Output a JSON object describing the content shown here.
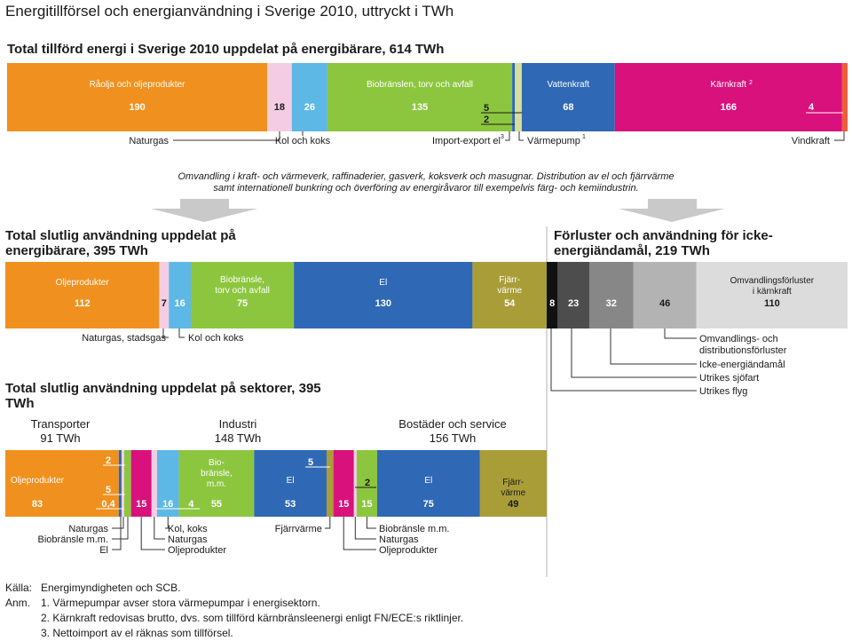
{
  "title": "Energitillförsel och energianvändning i Sverige 2010, uttryckt i TWh",
  "note_line1": "Omvandling i kraft- och värmeverk, raffinaderier, gasverk, koksverk och masugnar. Distribution av el och fjärrvärme",
  "note_line2": "samt internationell bunkring och överföring av energiråvaror till exempelvis färg- och kemiindustrin.",
  "colors": {
    "olja": "#f0901e",
    "gas": "#f4cde4",
    "kol": "#5db8e6",
    "bio": "#8cc63f",
    "el": "#2f68b5",
    "karn": "#d8117c",
    "vind": "#ef5d3a",
    "fjarr": "#a99d38",
    "varmepump": "#d7dd9a"
  },
  "chart_data": [
    {
      "type": "bar",
      "title": "Total tillförd energi i Sverige 2010 uppdelat på energibärare, 614 TWh",
      "segments": [
        {
          "name": "Råolja och oljeprodukter",
          "value": 190,
          "label": "190",
          "color": "olja"
        },
        {
          "name": "Naturgas",
          "value": 18,
          "label": "18",
          "color": "gas"
        },
        {
          "name": "Kol och koks",
          "value": 26,
          "label": "26",
          "color": "kol"
        },
        {
          "name": "Biobränslen, torv och avfall",
          "value": 135,
          "label": "135",
          "color": "bio"
        },
        {
          "name": "Import-export el",
          "value": 2,
          "label": "2",
          "color": "el"
        },
        {
          "name": "Värmepump",
          "value": 5,
          "label": "5",
          "color": "varmepump"
        },
        {
          "name": "Vattenkraft",
          "value": 68,
          "label": "68",
          "color": "el"
        },
        {
          "name": "Kärnkraft",
          "value": 166,
          "label": "166",
          "color": "karn"
        },
        {
          "name": "Vindkraft",
          "value": 4,
          "label": "4",
          "color": "vind"
        }
      ],
      "inner_labels": [
        "Råolja och oljeprodukter",
        "Biobränslen, torv och avfall",
        "Vattenkraft",
        "Kärnkraft"
      ],
      "callouts": [
        "Naturgas",
        "Kol och koks",
        "Import-export el",
        "Värmepump",
        "Vindkraft"
      ],
      "superscripts": [
        "3",
        "1",
        "2"
      ]
    },
    {
      "type": "bar",
      "title": "Total slutlig användning uppdelat på energibärare, 395 TWh",
      "segments": [
        {
          "name": "Oljeprodukter",
          "value": 112,
          "label": "112",
          "color": "olja"
        },
        {
          "name": "Naturgas, stadsgas",
          "value": 7,
          "label": "7",
          "color": "gas"
        },
        {
          "name": "Kol och koks",
          "value": 16,
          "label": "16",
          "color": "kol"
        },
        {
          "name": "Biobränsle, torv och avfall",
          "value": 75,
          "label": "75",
          "color": "bio"
        },
        {
          "name": "El",
          "value": 130,
          "label": "130",
          "color": "el"
        },
        {
          "name": "Fjärrvärme",
          "value": 54,
          "label": "54",
          "color": "fjarr"
        }
      ],
      "inner_labels": [
        "Oljeprodukter",
        "Biobränsle,",
        "torv och avfall",
        "El",
        "Fjärr-",
        "värme"
      ],
      "callouts": [
        "Naturgas, stadsgas",
        "Kol och koks"
      ]
    },
    {
      "type": "bar",
      "title": "Förluster och användning för icke-energiändamål, 219 TWh",
      "segments": [
        {
          "name": "Utrikes flyg",
          "value": 8,
          "label": "8",
          "color": "#111111"
        },
        {
          "name": "Utrikes sjöfart",
          "value": 23,
          "label": "23",
          "color": "#4d4d4d"
        },
        {
          "name": "Icke-energiändamål",
          "value": 32,
          "label": "32",
          "color": "#878787"
        },
        {
          "name": "Omvandlings- och distributionsförluster",
          "value": 46,
          "label": "46",
          "color": "#b3b3b3"
        },
        {
          "name": "Omvandlingsförluster i kärnkraft",
          "value": 110,
          "label": "110",
          "color": "#dcdcdc"
        }
      ],
      "inner_labels": [
        "Omvandlingsförluster",
        "i kärnkraft"
      ],
      "callouts": [
        "Omvandlings- och",
        "distributionsförluster",
        "Icke-energiändamål",
        "Utrikes sjöfart",
        "Utrikes flyg"
      ]
    },
    {
      "type": "bar",
      "title": "Total slutlig användning uppdelat på sektorer, 395 TWh",
      "sectors": [
        {
          "name": "Transporter",
          "total": "91 TWh",
          "parts": [
            {
              "name": "Oljeprodukter",
              "value": 83
            },
            {
              "name": "El",
              "value": 2
            },
            {
              "name": "Naturgas",
              "value": 0.4
            },
            {
              "name": "Biobränsle m.m.",
              "value": 5
            }
          ]
        },
        {
          "name": "Industri",
          "total": "148 TWh",
          "parts": [
            {
              "name": "Oljeprodukter",
              "value": 15
            },
            {
              "name": "Naturgas",
              "value": 4
            },
            {
              "name": "Kol, koks",
              "value": 16
            },
            {
              "name": "Biobränsle m.m.",
              "value": 55
            },
            {
              "name": "El",
              "value": 53
            },
            {
              "name": "Fjärrvärme",
              "value": 5
            }
          ]
        },
        {
          "name": "Bostäder och service",
          "total": "156 TWh",
          "parts": [
            {
              "name": "Oljeprodukter",
              "value": 15
            },
            {
              "name": "Naturgas",
              "value": 2
            },
            {
              "name": "Biobränsle m.m.",
              "value": 15
            },
            {
              "name": "El",
              "value": 75
            },
            {
              "name": "Fjärrvärme",
              "value": 49
            }
          ]
        }
      ],
      "bar_labels": [
        "83",
        "0,4",
        "2",
        "5",
        "15",
        "16",
        "4",
        "55",
        "53",
        "5",
        "15",
        "2",
        "15",
        "75",
        "49"
      ],
      "inner_labels": [
        "Oljeprodukter",
        "Bio-",
        "bränsle,",
        "m.m.",
        "El",
        "El",
        "Fjärr-",
        "värme"
      ],
      "callouts": [
        "Naturgas",
        "Biobränsle m.m.",
        "El",
        "Kol, koks",
        "Naturgas",
        "Oljeprodukter",
        "Fjärrvärme",
        "Biobränsle m.m.",
        "Naturgas",
        "Oljeprodukter"
      ]
    }
  ],
  "footer": {
    "source_label": "Källa:",
    "source": "Energimyndigheten och SCB.",
    "anm_label": "Anm.",
    "notes": [
      "1. Värmepumpar avser stora värmepumpar i energisektorn.",
      "2. Kärnkraft redovisas brutto, dvs. som tillförd kärnbränsleenergi enligt FN/ECE:s riktlinjer.",
      "3. Nettoimport av el räknas som tillförsel."
    ]
  }
}
